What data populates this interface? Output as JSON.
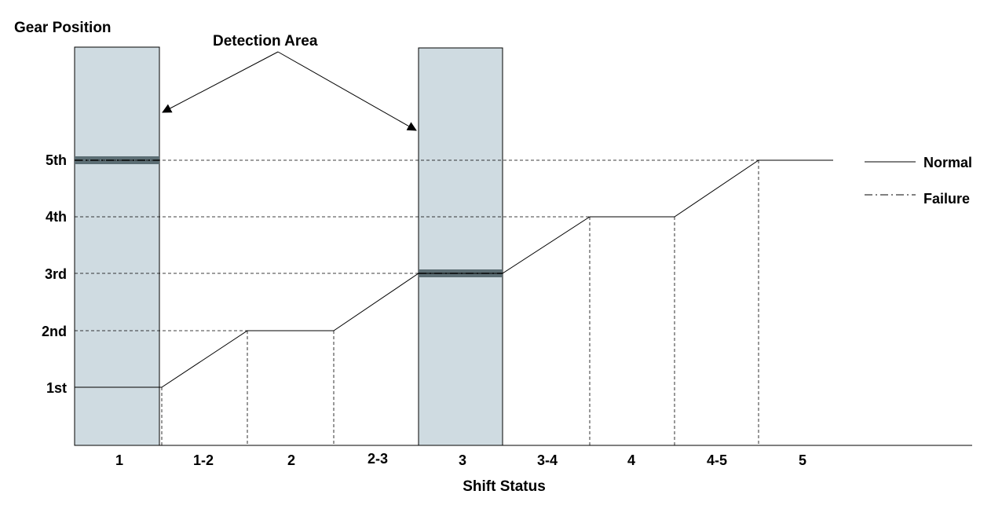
{
  "diagram": {
    "y_title": "Gear Position",
    "x_title": "Shift Status",
    "annotation": "Detection Area",
    "gear_levels": [
      "1st",
      "2nd",
      "3rd",
      "4th",
      "5th"
    ],
    "shift_stages": [
      "1",
      "1-2",
      "2",
      "2-3",
      "3",
      "3-4",
      "4",
      "4-5",
      "5"
    ],
    "normal_path": [
      {
        "stage": "1",
        "gear": "1st"
      },
      {
        "stage": "1-2",
        "gear": "2nd"
      },
      {
        "stage": "2",
        "gear": "2nd"
      },
      {
        "stage": "2-3",
        "gear": "3rd"
      },
      {
        "stage": "3",
        "gear": "3rd"
      },
      {
        "stage": "3-4",
        "gear": "4th"
      },
      {
        "stage": "4",
        "gear": "4th"
      },
      {
        "stage": "4-5",
        "gear": "5th"
      },
      {
        "stage": "5",
        "gear": "5th"
      }
    ],
    "failure_segments": [
      {
        "stage": "1",
        "gear": "5th"
      },
      {
        "stage": "3",
        "gear": "3rd"
      }
    ],
    "detection_stages": [
      "1",
      "3"
    ]
  },
  "legend": {
    "normal_label": "Normal",
    "failure_label": "Failure"
  },
  "colors": {
    "detection_fill": "#cfdbe1",
    "failure_band": "#5c6e74",
    "line": "#000000"
  }
}
